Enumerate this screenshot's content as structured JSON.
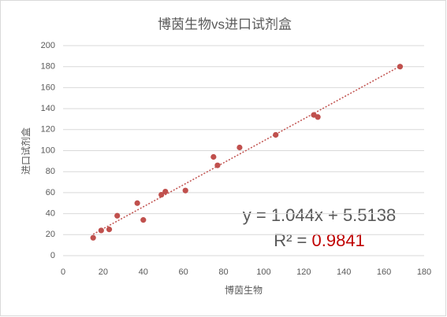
{
  "chart_data": {
    "type": "scatter",
    "title": "博茵生物vs进口试剂盒",
    "x_label": "博茵生物",
    "y_label": "进口试剂盒",
    "series": [
      {
        "color": "#c0504d",
        "x": [
          15,
          19,
          23,
          27,
          37,
          40,
          49,
          51,
          61,
          75,
          77,
          88,
          106,
          125,
          127,
          168
        ],
        "values": [
          17,
          24,
          25,
          38,
          50,
          34,
          58,
          61,
          62,
          94,
          86,
          103,
          115,
          134,
          132,
          180
        ]
      }
    ],
    "trendline": {
      "style": "dotted",
      "equation": "y = 1.044x + 5.5138",
      "r2_label": "R² = ",
      "r2": 0.9841,
      "r2_color": "#c00000"
    },
    "xlim": [
      0,
      180
    ],
    "xticks": [
      0,
      20,
      40,
      60,
      80,
      100,
      120,
      140,
      160,
      180
    ],
    "ylim": [
      0,
      200
    ],
    "yticks": [
      0,
      20,
      40,
      60,
      80,
      100,
      120,
      140,
      160,
      180,
      200
    ],
    "grid": true
  }
}
